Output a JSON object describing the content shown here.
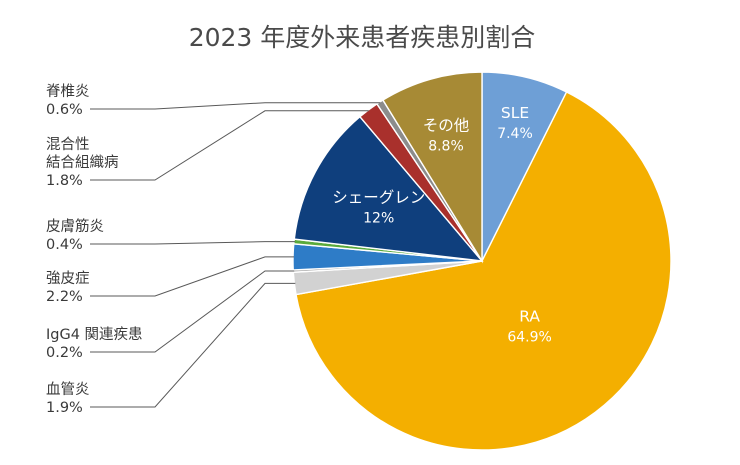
{
  "chart_data": {
    "type": "pie",
    "title": "2023 年度外来患者疾患別割合",
    "slices": [
      {
        "label": "SLE",
        "value": 7.4,
        "display": "7.4%",
        "color": "#6e9fd6",
        "label_placement": "inside"
      },
      {
        "label": "RA",
        "value": 64.9,
        "display": "64.9%",
        "color": "#f4af00",
        "label_placement": "inside"
      },
      {
        "label": "血管炎",
        "value": 1.9,
        "display": "1.9%",
        "color": "#d2d2d2",
        "label_placement": "outside"
      },
      {
        "label": "IgG4 関連疾患",
        "value": 0.2,
        "display": "0.2%",
        "color": "#a6a6a6",
        "label_placement": "outside"
      },
      {
        "label": "強皮症",
        "value": 2.2,
        "display": "2.2%",
        "color": "#2e7cc7",
        "label_placement": "outside"
      },
      {
        "label": "皮膚筋炎",
        "value": 0.4,
        "display": "0.4%",
        "color": "#5aaa3c",
        "label_placement": "outside"
      },
      {
        "label": "シェーグレン",
        "value": 12,
        "display": "12%",
        "color": "#0f3f7d",
        "label_placement": "inside"
      },
      {
        "label": "混合性\n結合組織病",
        "value": 1.8,
        "display": "1.8%",
        "color": "#a9302c",
        "label_placement": "outside"
      },
      {
        "label": "脊椎炎",
        "value": 0.6,
        "display": "0.6%",
        "color": "#8c8c8c",
        "label_placement": "outside"
      },
      {
        "label": "その他",
        "value": 8.8,
        "display": "8.8%",
        "color": "#a78a35",
        "label_placement": "inside"
      }
    ],
    "start": "12 o'clock",
    "direction": "clockwise",
    "legend": "none"
  }
}
